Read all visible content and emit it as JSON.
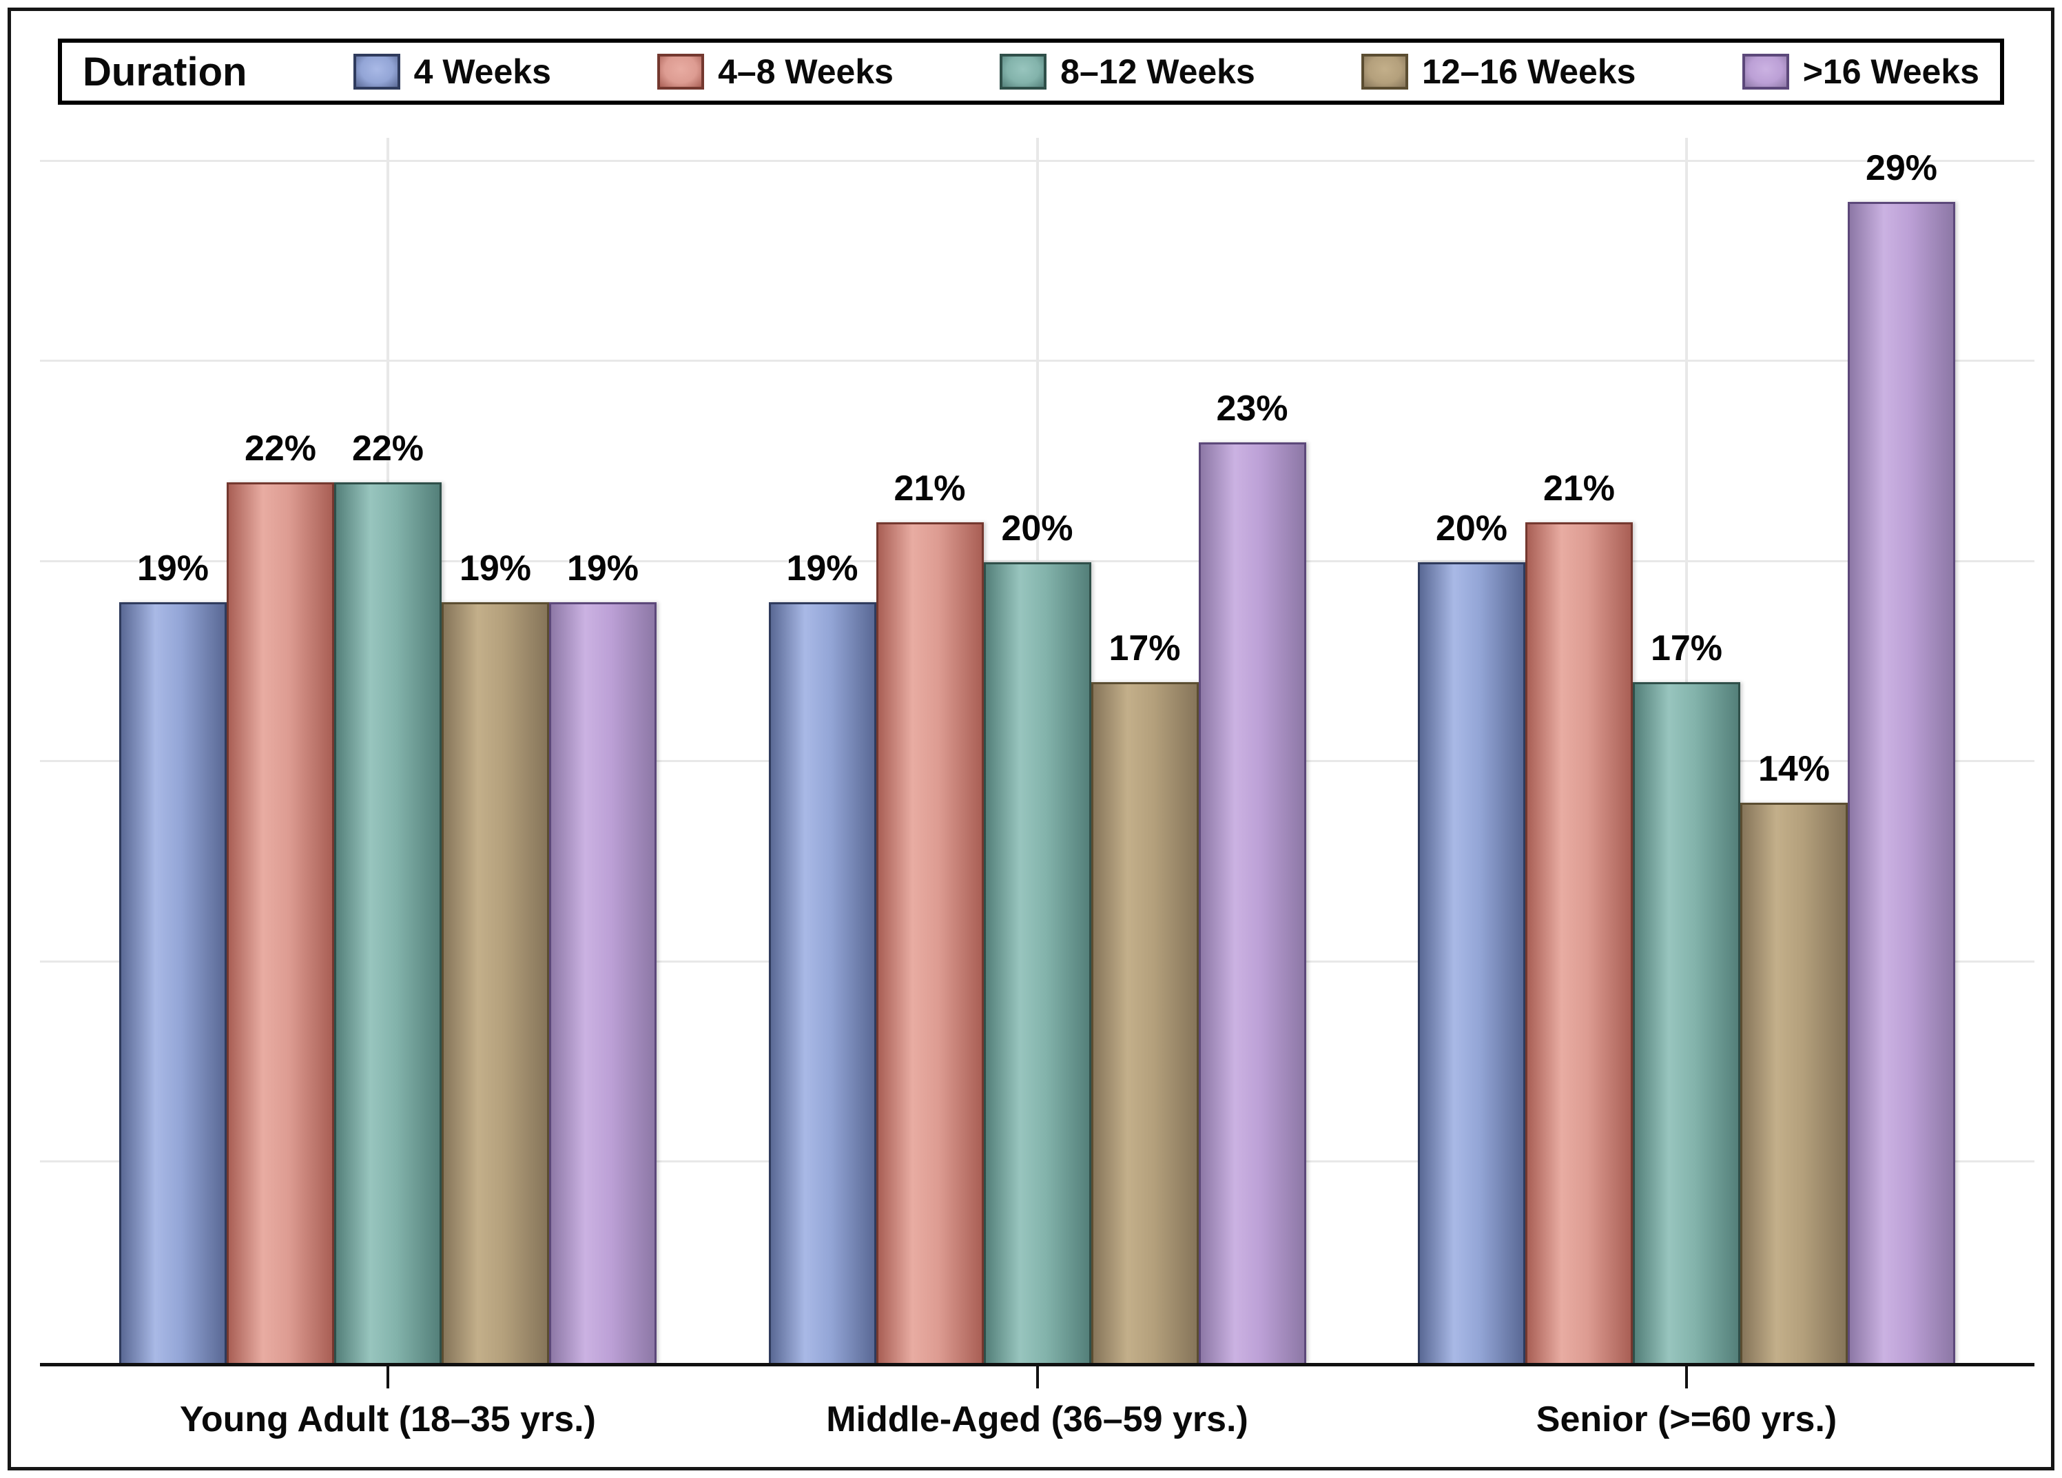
{
  "legend": {
    "title": "Duration",
    "position": "top"
  },
  "chart_data": {
    "type": "bar",
    "categories": [
      "Young Adult (18–35 yrs.)",
      "Middle-Aged (36–59 yrs.)",
      "Senior (>=60 yrs.)"
    ],
    "series": [
      {
        "name": "4 Weeks",
        "values": [
          19,
          19,
          20
        ],
        "color": "#93A5D6",
        "color_light": "#A9B9E6",
        "color_dark": "#5A6995",
        "color_edge": "#2F3B5D"
      },
      {
        "name": "4–8 Weeks",
        "values": [
          22,
          21,
          21
        ],
        "color": "#DD9C92",
        "color_light": "#E8ACA2",
        "color_dark": "#A95F55",
        "color_edge": "#74382F"
      },
      {
        "name": "8–12 Weeks",
        "values": [
          22,
          20,
          17
        ],
        "color": "#83B3AB",
        "color_light": "#98C5BE",
        "color_dark": "#54807A",
        "color_edge": "#2F4F49"
      },
      {
        "name": "12–16 Weeks",
        "values": [
          19,
          17,
          14
        ],
        "color": "#B4A07C",
        "color_light": "#C3AF8A",
        "color_dark": "#86755A",
        "color_edge": "#5B4D31"
      },
      {
        "name": ">16 Weeks",
        "values": [
          19,
          23,
          29
        ],
        "color": "#BCA0D6",
        "color_light": "#CBB2E2",
        "color_dark": "#8D78A6",
        "color_edge": "#5C487A"
      }
    ],
    "value_label_format": "{v}%",
    "xlabel": "",
    "ylabel": "",
    "ylim": [
      0,
      30.6
    ],
    "grid": {
      "step": 5,
      "max": 30,
      "color": "#E8E8E8",
      "vertical_at_group_centers": true
    },
    "axis_color": "#111111",
    "legend_position": "top"
  }
}
